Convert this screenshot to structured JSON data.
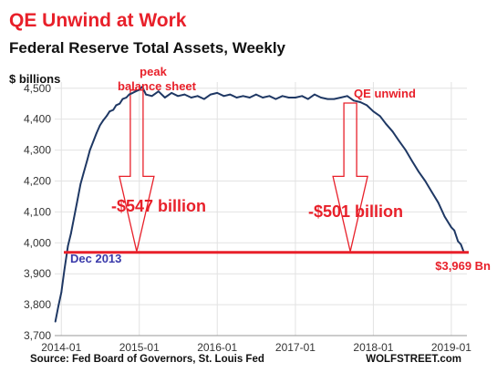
{
  "title": "QE Unwind at Work",
  "subtitle": "Federal Reserve Total Assets, Weekly",
  "y_unit": "$ billions",
  "annotations": {
    "peak": [
      "peak",
      "balance sheet"
    ],
    "qe_unwind": "QE unwind",
    "drop1": "-$547 billion",
    "drop2": "-$501 billion",
    "start": "Dec 2013",
    "end": "$3,969 Bn"
  },
  "footer": {
    "source": "Source: Fed Board of Governors, St. Louis Fed",
    "brand": "WOLFSTREET.com"
  },
  "colors": {
    "line": "#1f3864",
    "accent": "#e8202a",
    "label_blue": "#3a3aaa",
    "grid": "#e2e2e2"
  },
  "chart_data": {
    "type": "line",
    "title": "Federal Reserve Total Assets, Weekly",
    "ylabel": "$ billions",
    "ylim": [
      3700,
      4520
    ],
    "y_ticks": [
      "3,700",
      "3,800",
      "3,900",
      "4,000",
      "4,100",
      "4,200",
      "4,300",
      "4,400",
      "4,500"
    ],
    "y_tick_values": [
      3700,
      3800,
      3900,
      4000,
      4100,
      4200,
      4300,
      4400,
      4500
    ],
    "x_ticks": [
      "2014-01",
      "2015-01",
      "2016-01",
      "2017-01",
      "2018-01",
      "2019-01"
    ],
    "x_tick_values": [
      "2014-01-01",
      "2015-01-01",
      "2016-01-01",
      "2017-01-01",
      "2018-01-01",
      "2019-01-01"
    ],
    "xlim": [
      "2013-12-01",
      "2019-03-15"
    ],
    "grid": true,
    "reference_line": 3969,
    "series": [
      {
        "x": [
          "2013-12-04",
          "2013-12-18",
          "2014-01-01",
          "2014-01-15",
          "2014-02-01",
          "2014-02-15",
          "2014-03-01",
          "2014-03-15",
          "2014-04-01",
          "2014-04-15",
          "2014-05-01",
          "2014-05-15",
          "2014-06-01",
          "2014-06-15",
          "2014-07-01",
          "2014-07-15",
          "2014-08-01",
          "2014-08-15",
          "2014-09-01",
          "2014-09-15",
          "2014-10-01",
          "2014-10-15",
          "2014-11-01",
          "2014-11-15",
          "2014-12-01",
          "2014-12-15",
          "2015-01-01",
          "2015-01-15",
          "2015-02-01",
          "2015-03-01",
          "2015-04-01",
          "2015-05-01",
          "2015-06-01",
          "2015-07-01",
          "2015-08-01",
          "2015-09-01",
          "2015-10-01",
          "2015-11-01",
          "2015-12-01",
          "2016-01-01",
          "2016-02-01",
          "2016-03-01",
          "2016-04-01",
          "2016-05-01",
          "2016-06-01",
          "2016-07-01",
          "2016-08-01",
          "2016-09-01",
          "2016-10-01",
          "2016-11-01",
          "2016-12-01",
          "2017-01-01",
          "2017-02-01",
          "2017-03-01",
          "2017-04-01",
          "2017-05-01",
          "2017-06-01",
          "2017-07-01",
          "2017-08-01",
          "2017-09-01",
          "2017-10-01",
          "2017-11-01",
          "2017-12-01",
          "2018-01-01",
          "2018-02-01",
          "2018-03-01",
          "2018-04-01",
          "2018-05-01",
          "2018-06-01",
          "2018-07-01",
          "2018-08-01",
          "2018-09-01",
          "2018-10-01",
          "2018-11-01",
          "2018-12-01",
          "2019-01-01",
          "2019-01-15",
          "2019-02-01",
          "2019-02-15",
          "2019-03-01"
        ],
        "values": [
          3745,
          3795,
          3840,
          3910,
          3990,
          4030,
          4080,
          4130,
          4190,
          4225,
          4265,
          4300,
          4330,
          4355,
          4380,
          4395,
          4410,
          4425,
          4430,
          4445,
          4450,
          4465,
          4470,
          4480,
          4485,
          4490,
          4495,
          4505,
          4480,
          4475,
          4490,
          4470,
          4485,
          4475,
          4480,
          4470,
          4475,
          4465,
          4480,
          4485,
          4475,
          4480,
          4470,
          4475,
          4470,
          4480,
          4470,
          4475,
          4465,
          4475,
          4470,
          4470,
          4475,
          4465,
          4480,
          4470,
          4465,
          4465,
          4470,
          4475,
          4460,
          4455,
          4445,
          4425,
          4410,
          4385,
          4360,
          4330,
          4300,
          4265,
          4230,
          4200,
          4165,
          4130,
          4085,
          4050,
          4040,
          4005,
          3995,
          3969
        ]
      }
    ]
  }
}
